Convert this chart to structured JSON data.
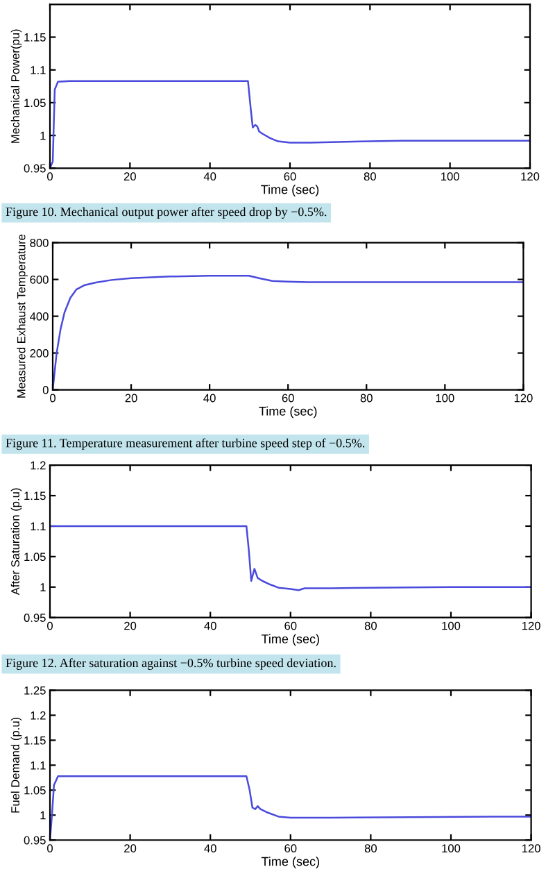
{
  "chart_data": [
    {
      "type": "line",
      "xlabel": "Time (sec)",
      "ylabel": "Mechanical Power(pu)",
      "xlim": [
        0,
        120
      ],
      "xticks": [
        0,
        20,
        40,
        60,
        80,
        100,
        120
      ],
      "ylim": [
        0.95,
        1.2
      ],
      "yticks": [
        0.95,
        1,
        1.05,
        1.1,
        1.15
      ],
      "grid": false,
      "annotations": [
        "Figure 10. Mechanical output power after speed drop by −0.5%."
      ],
      "series": [
        {
          "color": "#4a4adc",
          "x": [
            0,
            0.7,
            1.2,
            2,
            5,
            10,
            20,
            30,
            40,
            49.5,
            50.2,
            50.7,
            51.3,
            51.8,
            52.3,
            53,
            55,
            57,
            60,
            65,
            72,
            80,
            88,
            100,
            120
          ],
          "values": [
            0.95,
            0.96,
            1.07,
            1.082,
            1.083,
            1.083,
            1.083,
            1.083,
            1.083,
            1.083,
            1.04,
            1.012,
            1.016,
            1.014,
            1.006,
            1.003,
            0.996,
            0.991,
            0.989,
            0.989,
            0.99,
            0.991,
            0.992,
            0.992,
            0.992
          ]
        }
      ]
    },
    {
      "type": "line",
      "xlabel": "Time (sec)",
      "ylabel": "Measured Exhaust Temperature",
      "xlim": [
        0,
        120
      ],
      "xticks": [
        0,
        20,
        40,
        60,
        80,
        100,
        120
      ],
      "ylim": [
        0,
        800
      ],
      "yticks": [
        0,
        200,
        400,
        600,
        800
      ],
      "grid": false,
      "annotations": [
        "Figure 11. Temperature measurement after turbine speed step of −0.5%."
      ],
      "series": [
        {
          "color": "#4a4adc",
          "x": [
            0,
            1,
            2,
            3,
            4.5,
            6,
            8,
            11,
            15,
            20,
            30,
            40,
            50,
            53,
            56,
            60,
            65,
            80,
            100,
            120
          ],
          "values": [
            0,
            200,
            330,
            420,
            500,
            545,
            568,
            583,
            597,
            607,
            616,
            620,
            620,
            605,
            592,
            588,
            585,
            585,
            585,
            585
          ]
        }
      ]
    },
    {
      "type": "line",
      "xlabel": "Time (sec)",
      "ylabel": "After Saturation (p.u)",
      "xlim": [
        0,
        120
      ],
      "xticks": [
        0,
        20,
        40,
        60,
        80,
        100,
        120
      ],
      "ylim": [
        0.95,
        1.2
      ],
      "yticks": [
        0.95,
        1,
        1.05,
        1.1,
        1.15,
        1.2
      ],
      "grid": false,
      "annotations": [
        "Figure 12. After saturation against −0.5% turbine speed deviation."
      ],
      "series": [
        {
          "color": "#4a4adc",
          "x": [
            0,
            20,
            40,
            49,
            49.6,
            50.2,
            51,
            51.8,
            53,
            55,
            57,
            60,
            62,
            63.5,
            70,
            80,
            100,
            120
          ],
          "values": [
            1.1,
            1.1,
            1.1,
            1.1,
            1.06,
            1.01,
            1.03,
            1.015,
            1.01,
            1.004,
            0.999,
            0.997,
            0.995,
            0.998,
            0.998,
            0.999,
            1.0,
            1.0
          ]
        }
      ]
    },
    {
      "type": "line",
      "xlabel": "Time (sec)",
      "ylabel": "Fuel Demand (p.u)",
      "xlim": [
        0,
        120
      ],
      "xticks": [
        0,
        20,
        40,
        60,
        80,
        100,
        120
      ],
      "ylim": [
        0.95,
        1.25
      ],
      "yticks": [
        0.95,
        1,
        1.05,
        1.1,
        1.15,
        1.2,
        1.25
      ],
      "grid": false,
      "series": [
        {
          "color": "#4a4adc",
          "x": [
            0,
            0.5,
            1,
            2,
            10,
            20,
            30,
            40,
            49,
            49.8,
            50.5,
            51.2,
            51.8,
            52.5,
            54,
            57,
            60,
            70,
            90,
            110,
            120
          ],
          "values": [
            0.95,
            1.0,
            1.06,
            1.078,
            1.078,
            1.078,
            1.078,
            1.078,
            1.078,
            1.05,
            1.015,
            1.012,
            1.018,
            1.012,
            1.006,
            0.997,
            0.995,
            0.995,
            0.996,
            0.997,
            0.997
          ]
        }
      ]
    }
  ]
}
